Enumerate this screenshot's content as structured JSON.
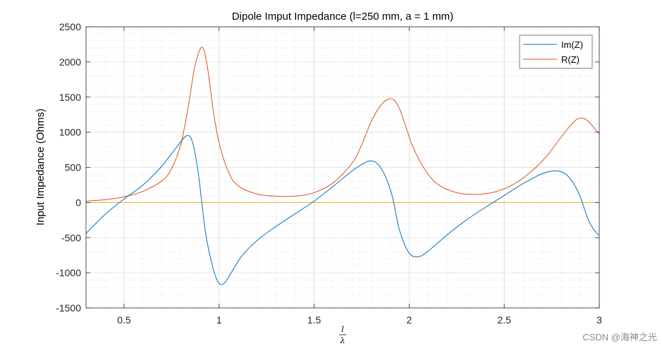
{
  "watermark": "CSDN @海神之光",
  "chart_data": {
    "type": "line",
    "title": "Dipole Imput Impedance (l=250 mm, a = 1 mm)",
    "xlabel_num": "l",
    "xlabel_den": "λ",
    "ylabel": "Input Impedance (Ohms)",
    "xlim": [
      0.3,
      3.0
    ],
    "ylim": [
      -1500,
      2500
    ],
    "xticks": [
      0.5,
      1,
      1.5,
      2,
      2.5,
      3
    ],
    "xtick_labels": [
      "0.5",
      "1",
      "1.5",
      "2",
      "2.5",
      "3"
    ],
    "yticks": [
      -1500,
      -1000,
      -500,
      0,
      500,
      1000,
      1500,
      2000,
      2500
    ],
    "ytick_labels": [
      "-1500",
      "-1000",
      "-500",
      "0",
      "500",
      "1000",
      "1500",
      "2000",
      "2500"
    ],
    "grid": "on (major and minor)",
    "legend_position": "top-right",
    "series": [
      {
        "name": "Im(Z)",
        "color": "#0072BD",
        "x": [
          0.3,
          0.4,
          0.5,
          0.6,
          0.7,
          0.78,
          0.83,
          0.86,
          0.89,
          0.93,
          0.97,
          1.0,
          1.03,
          1.07,
          1.12,
          1.2,
          1.3,
          1.4,
          1.5,
          1.6,
          1.7,
          1.75,
          1.79,
          1.83,
          1.87,
          1.91,
          1.95,
          2.0,
          2.05,
          2.1,
          2.2,
          2.3,
          2.4,
          2.5,
          2.6,
          2.7,
          2.77,
          2.82,
          2.86,
          2.9,
          2.94,
          2.97,
          3.0
        ],
        "y": [
          -440,
          -170,
          50,
          250,
          520,
          800,
          950,
          860,
          430,
          -450,
          -950,
          -1150,
          -1140,
          -970,
          -760,
          -540,
          -340,
          -160,
          20,
          230,
          450,
          540,
          590,
          560,
          400,
          100,
          -400,
          -720,
          -770,
          -690,
          -460,
          -250,
          -70,
          100,
          270,
          410,
          450,
          410,
          290,
          80,
          -230,
          -380,
          -470
        ]
      },
      {
        "name": "R(Z)",
        "color": "#D95319",
        "x": [
          0.3,
          0.4,
          0.5,
          0.6,
          0.7,
          0.75,
          0.8,
          0.84,
          0.87,
          0.9,
          0.92,
          0.94,
          0.97,
          1.0,
          1.05,
          1.1,
          1.2,
          1.3,
          1.4,
          1.5,
          1.6,
          1.7,
          1.75,
          1.8,
          1.85,
          1.89,
          1.92,
          1.95,
          1.98,
          2.02,
          2.08,
          2.15,
          2.25,
          2.35,
          2.45,
          2.55,
          2.65,
          2.72,
          2.78,
          2.84,
          2.88,
          2.91,
          2.94,
          2.97,
          3.0
        ],
        "y": [
          20,
          40,
          80,
          160,
          310,
          480,
          840,
          1400,
          1900,
          2180,
          2170,
          1900,
          1300,
          850,
          430,
          240,
          120,
          90,
          90,
          140,
          280,
          560,
          820,
          1150,
          1380,
          1470,
          1460,
          1330,
          1100,
          790,
          480,
          260,
          140,
          115,
          150,
          260,
          460,
          650,
          860,
          1070,
          1180,
          1200,
          1160,
          1070,
          980
        ]
      },
      {
        "name": "",
        "color": "#EDB120",
        "x": [
          0.3,
          3.0
        ],
        "y": [
          0,
          0
        ]
      }
    ]
  }
}
